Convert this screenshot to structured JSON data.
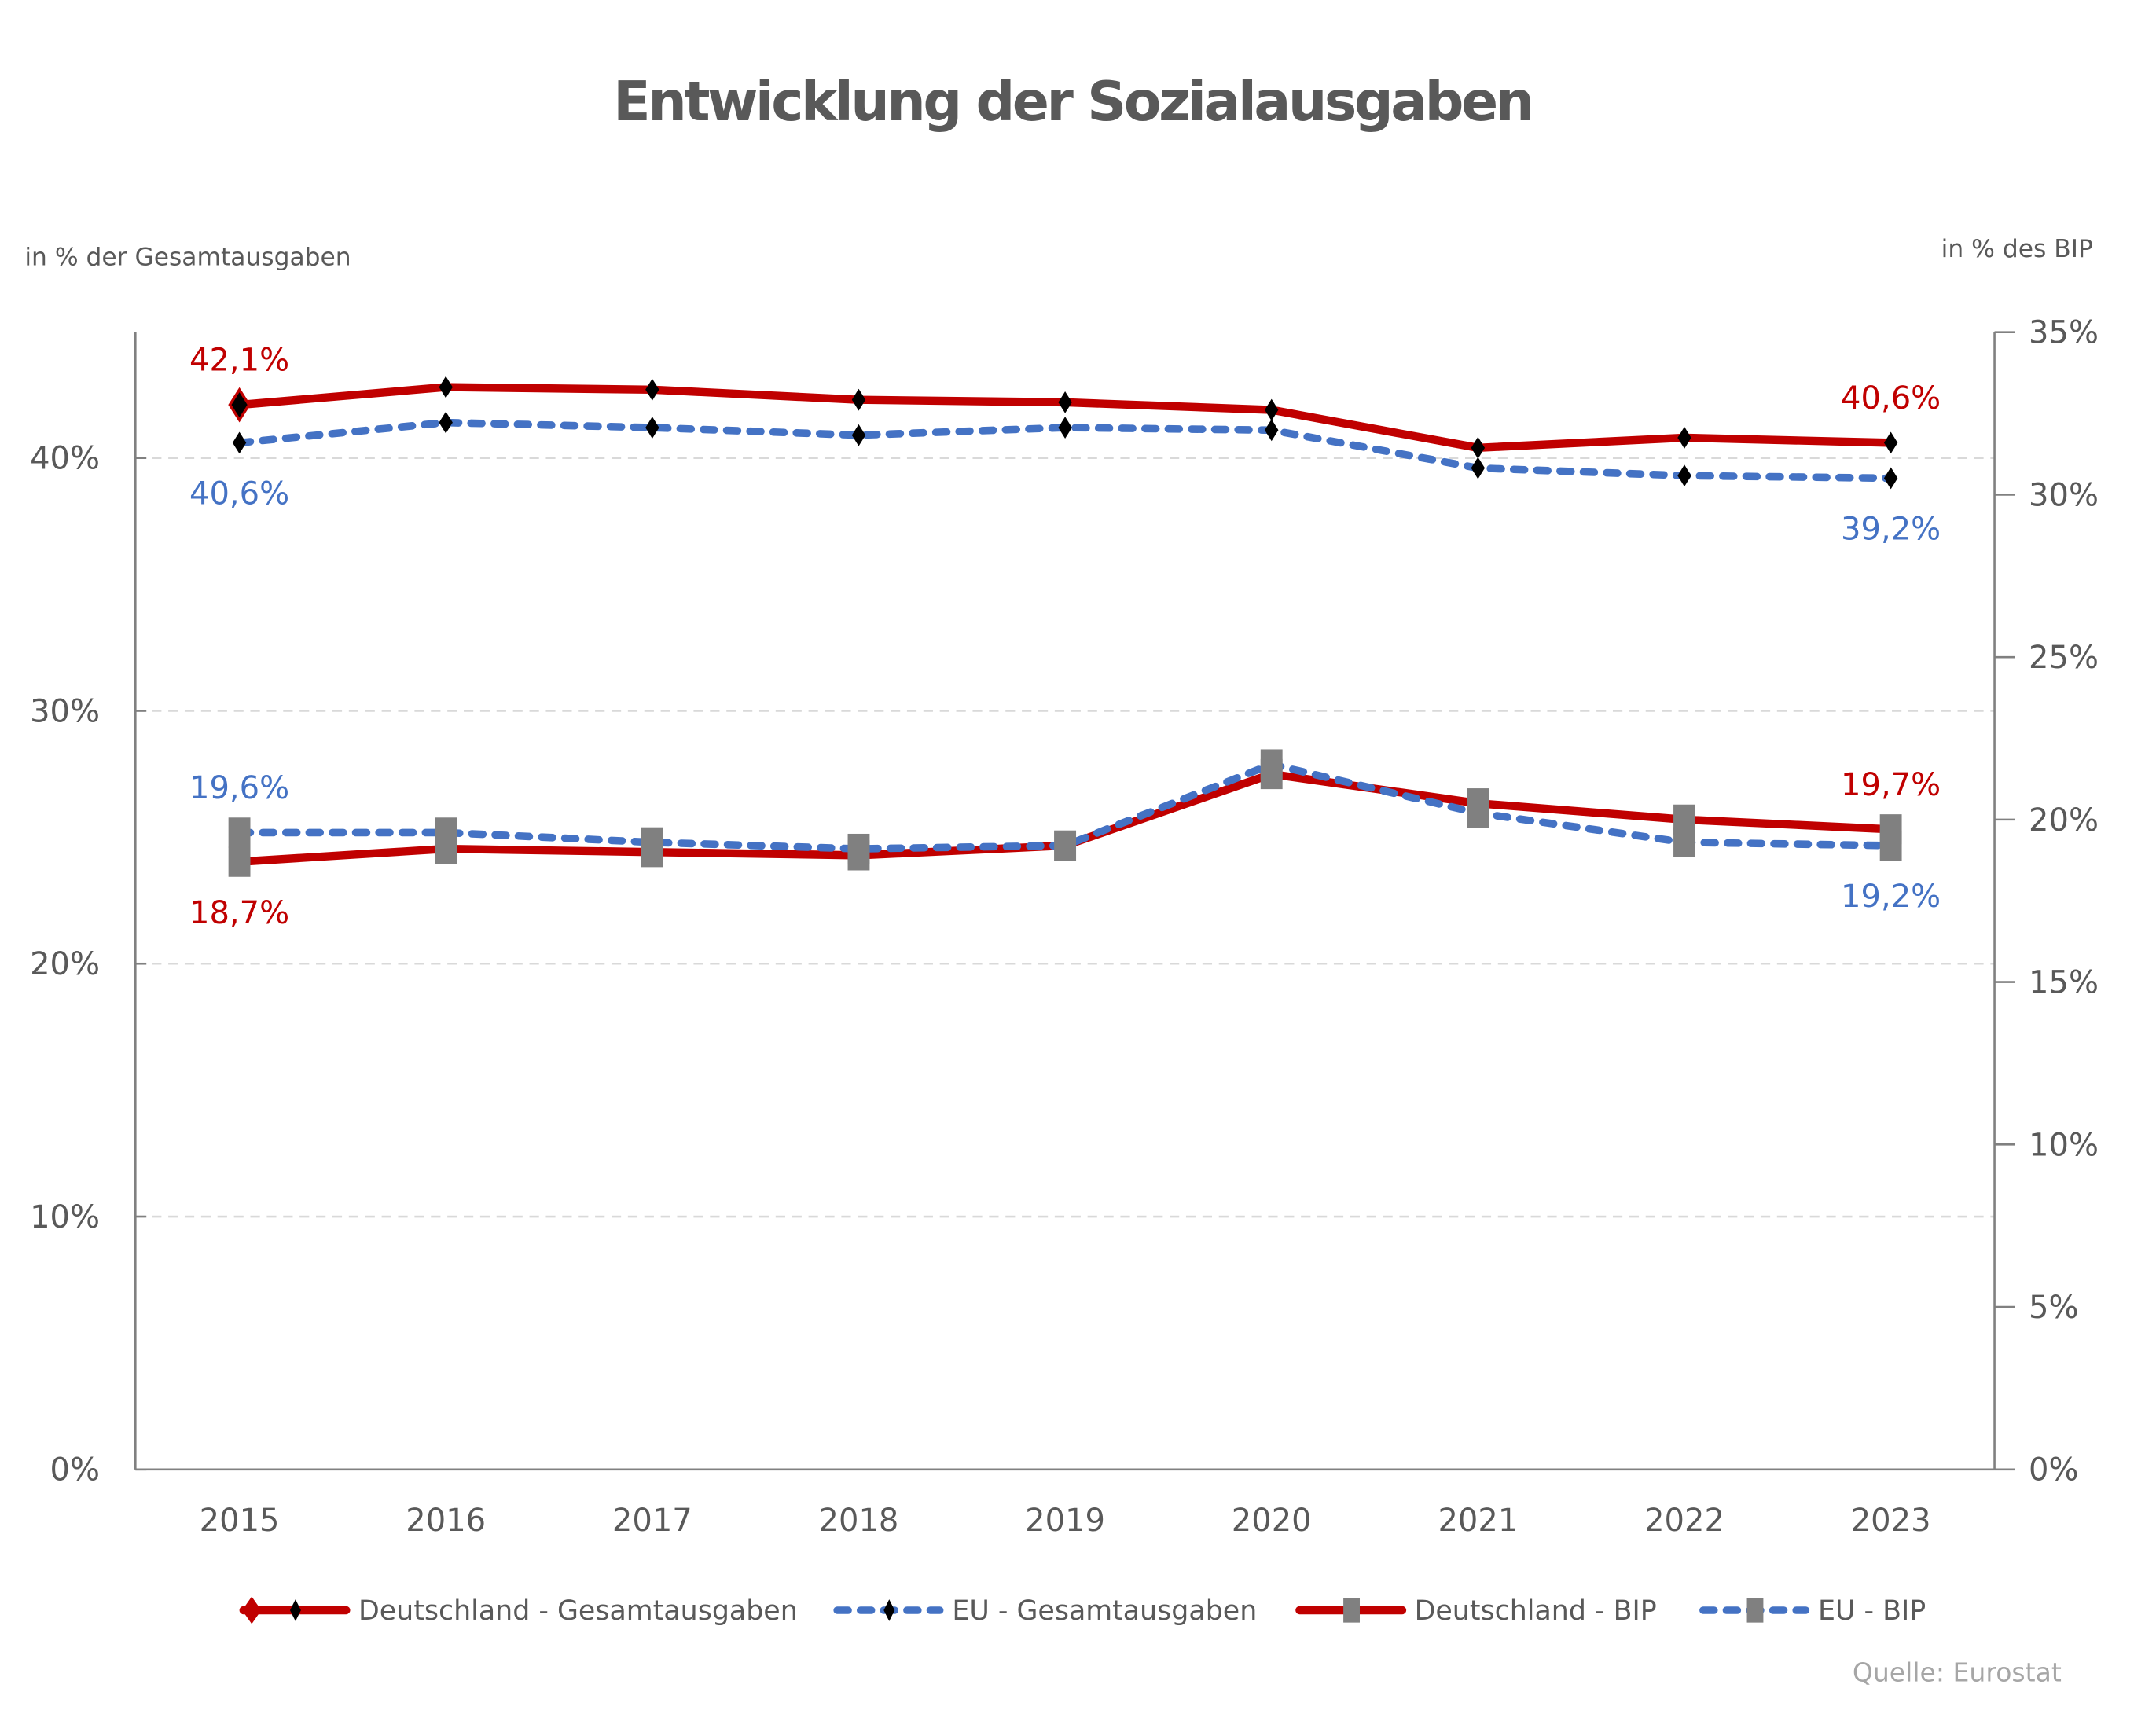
{
  "chart_data": {
    "type": "line",
    "title": "Entwicklung der Sozialausgaben",
    "ylabel_left": "in % der Gesamtausgaben",
    "ylabel_right": "in % des BIP",
    "source": "Quelle: Eurostat",
    "categories": [
      "2015",
      "2016",
      "2017",
      "2018",
      "2019",
      "2020",
      "2021",
      "2022",
      "2023"
    ],
    "y_left": {
      "range": [
        0,
        45
      ],
      "ticks": [
        0,
        10,
        20,
        30,
        40
      ],
      "tick_labels": [
        "0%",
        "10%",
        "20%",
        "30%",
        "40%"
      ]
    },
    "y_right": {
      "range": [
        0,
        35
      ],
      "ticks": [
        0,
        5,
        10,
        15,
        20,
        25,
        30,
        35
      ],
      "tick_labels": [
        "0%",
        "5%",
        "10%",
        "15%",
        "20%",
        "25%",
        "30%",
        "35%"
      ]
    },
    "grid": "horizontal dashed at left-axis ticks",
    "legend_position": "bottom",
    "series": [
      {
        "name": "Deutschland - Gesamtausgaben",
        "axis": "left",
        "color": "#c00000",
        "line_style": "solid",
        "marker": "diamond",
        "marker_color": "#000000",
        "values": [
          42.1,
          42.8,
          42.7,
          42.3,
          42.2,
          41.9,
          40.4,
          40.8,
          40.6
        ],
        "labels": [
          {
            "index": 0,
            "text": "42,1%",
            "position": "above"
          },
          {
            "index": 8,
            "text": "40,6%",
            "position": "above"
          }
        ]
      },
      {
        "name": "EU - Gesamtausgaben",
        "axis": "left",
        "color": "#4472c4",
        "line_style": "dashed",
        "marker": "diamond",
        "marker_color": "#000000",
        "values": [
          40.6,
          41.4,
          41.2,
          40.9,
          41.2,
          41.1,
          39.6,
          39.3,
          39.2
        ],
        "labels": [
          {
            "index": 0,
            "text": "40,6%",
            "position": "below"
          },
          {
            "index": 8,
            "text": "39,2%",
            "position": "below"
          }
        ]
      },
      {
        "name": "Deutschland - BIP",
        "axis": "right",
        "color": "#c00000",
        "line_style": "solid",
        "marker": "square",
        "marker_color": "#808080",
        "values": [
          18.7,
          19.1,
          19.0,
          18.9,
          19.2,
          21.4,
          20.5,
          20.0,
          19.7
        ],
        "labels": [
          {
            "index": 0,
            "text": "18,7%",
            "position": "below"
          },
          {
            "index": 8,
            "text": "19,7%",
            "position": "above"
          }
        ]
      },
      {
        "name": "EU - BIP",
        "axis": "right",
        "color": "#4472c4",
        "line_style": "dashed",
        "marker": "square",
        "marker_color": "#808080",
        "values": [
          19.6,
          19.6,
          19.3,
          19.1,
          19.2,
          21.7,
          20.2,
          19.3,
          19.2
        ],
        "labels": [
          {
            "index": 0,
            "text": "19,6%",
            "position": "above"
          },
          {
            "index": 8,
            "text": "19,2%",
            "position": "below"
          }
        ]
      }
    ]
  },
  "colors": {
    "text": "#595959",
    "axis": "#808080",
    "grid": "#d9d9d9",
    "source": "#a6a6a6"
  }
}
